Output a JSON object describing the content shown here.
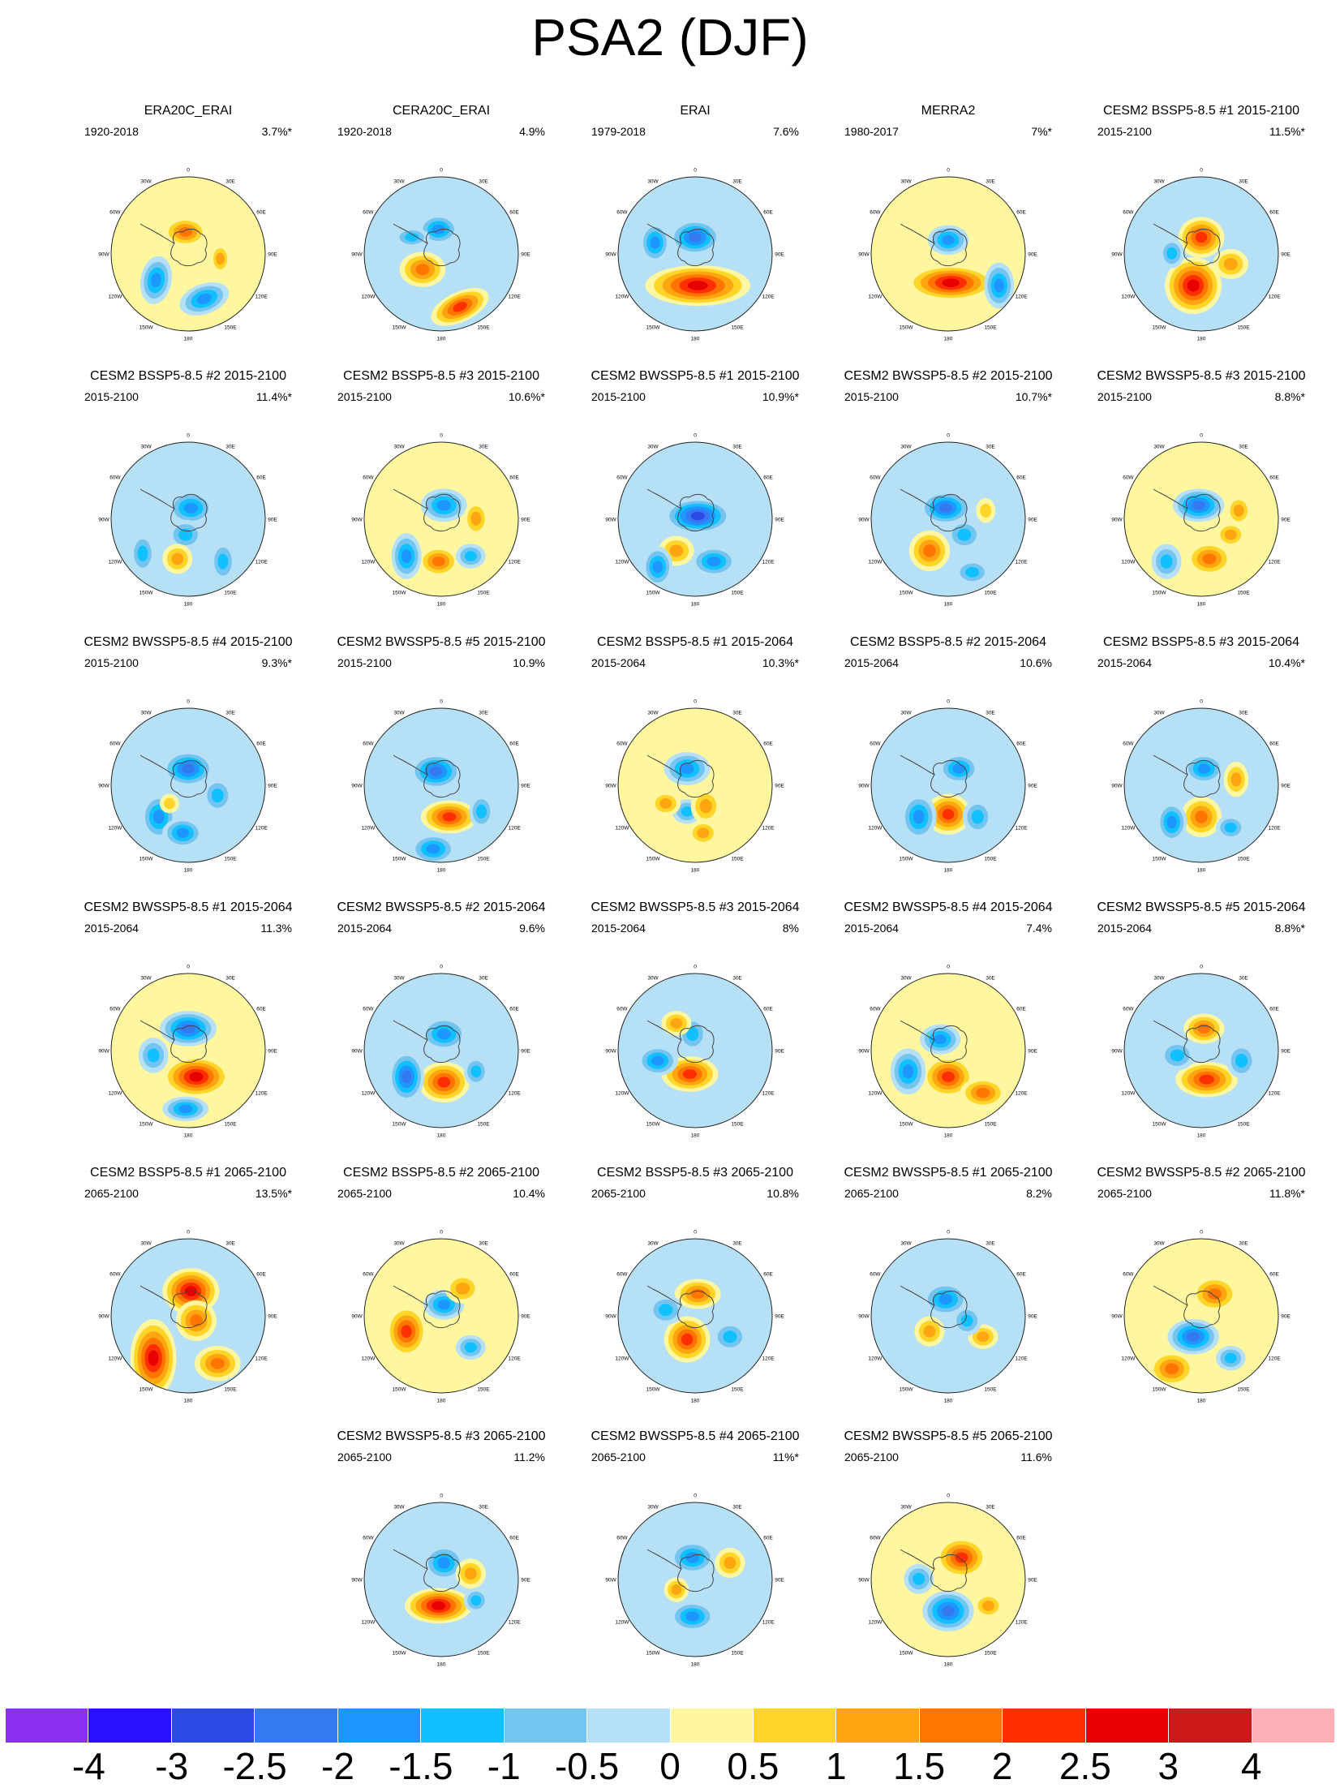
{
  "title": "PSA2 (DJF)",
  "map_labels": {
    "lon_0": "0",
    "lon_30w": "30W",
    "lon_30e": "30E",
    "lon_60w": "60W",
    "lon_60e": "60E",
    "lon_90w": "90W",
    "lon_90e": "90E",
    "lon_120w": "120W",
    "lon_120e": "120E",
    "lon_150w": "150W",
    "lon_150e": "150E",
    "lon_180": "180"
  },
  "panels": [
    {
      "title": "ERA20C_ERAI",
      "period": "1920-2018",
      "percent": "3.7%*"
    },
    {
      "title": "CERA20C_ERAI",
      "period": "1920-2018",
      "percent": "4.9%"
    },
    {
      "title": "ERAI",
      "period": "1979-2018",
      "percent": "7.6%"
    },
    {
      "title": "MERRA2",
      "period": "1980-2017",
      "percent": "7%*"
    },
    {
      "title": "CESM2 BSSP5-8.5 #1 2015-2100",
      "period": "2015-2100",
      "percent": "11.5%*"
    },
    {
      "title": "CESM2 BSSP5-8.5 #2 2015-2100",
      "period": "2015-2100",
      "percent": "11.4%*"
    },
    {
      "title": "CESM2 BSSP5-8.5 #3 2015-2100",
      "period": "2015-2100",
      "percent": "10.6%*"
    },
    {
      "title": "CESM2 BWSSP5-8.5 #1 2015-2100",
      "period": "2015-2100",
      "percent": "10.9%*"
    },
    {
      "title": "CESM2 BWSSP5-8.5 #2 2015-2100",
      "period": "2015-2100",
      "percent": "10.7%*"
    },
    {
      "title": "CESM2 BWSSP5-8.5 #3 2015-2100",
      "period": "2015-2100",
      "percent": "8.8%*"
    },
    {
      "title": "CESM2 BWSSP5-8.5 #4 2015-2100",
      "period": "2015-2100",
      "percent": "9.3%*"
    },
    {
      "title": "CESM2 BWSSP5-8.5 #5 2015-2100",
      "period": "2015-2100",
      "percent": "10.9%"
    },
    {
      "title": "CESM2 BSSP5-8.5 #1 2015-2064",
      "period": "2015-2064",
      "percent": "10.3%*"
    },
    {
      "title": "CESM2 BSSP5-8.5 #2 2015-2064",
      "period": "2015-2064",
      "percent": "10.6%"
    },
    {
      "title": "CESM2 BSSP5-8.5 #3 2015-2064",
      "period": "2015-2064",
      "percent": "10.4%*"
    },
    {
      "title": "CESM2 BWSSP5-8.5 #1 2015-2064",
      "period": "2015-2064",
      "percent": "11.3%"
    },
    {
      "title": "CESM2 BWSSP5-8.5 #2 2015-2064",
      "period": "2015-2064",
      "percent": "9.6%"
    },
    {
      "title": "CESM2 BWSSP5-8.5 #3 2015-2064",
      "period": "2015-2064",
      "percent": "8%"
    },
    {
      "title": "CESM2 BWSSP5-8.5 #4 2015-2064",
      "period": "2015-2064",
      "percent": "7.4%"
    },
    {
      "title": "CESM2 BWSSP5-8.5 #5 2015-2064",
      "period": "2015-2064",
      "percent": "8.8%*"
    },
    {
      "title": "CESM2 BSSP5-8.5 #1 2065-2100",
      "period": "2065-2100",
      "percent": "13.5%*"
    },
    {
      "title": "CESM2 BSSP5-8.5 #2 2065-2100",
      "period": "2065-2100",
      "percent": "10.4%"
    },
    {
      "title": "CESM2 BSSP5-8.5 #3 2065-2100",
      "period": "2065-2100",
      "percent": "10.8%"
    },
    {
      "title": "CESM2 BWSSP5-8.5 #1 2065-2100",
      "period": "2065-2100",
      "percent": "8.2%"
    },
    {
      "title": "CESM2 BWSSP5-8.5 #2 2065-2100",
      "period": "2065-2100",
      "percent": "11.8%*"
    },
    {
      "title": "CESM2 BWSSP5-8.5 #3 2065-2100",
      "period": "2065-2100",
      "percent": "11.2%"
    },
    {
      "title": "CESM2 BWSSP5-8.5 #4 2065-2100",
      "period": "2065-2100",
      "percent": "11%*"
    },
    {
      "title": "CESM2 BWSSP5-8.5 #5 2065-2100",
      "period": "2065-2100",
      "percent": "11.6%"
    }
  ],
  "colorbar": {
    "colors": [
      "#8b2ff0",
      "#2a10ff",
      "#2a4be8",
      "#3579f0",
      "#1e96ff",
      "#10c0ff",
      "#74c4f0",
      "#b6e0f6",
      "#fff7a0",
      "#ffd52a",
      "#ffa510",
      "#ff7500",
      "#ff2f00",
      "#e80000",
      "#cc1a1a",
      "#ffb0b6"
    ],
    "labels": [
      "-4",
      "-3",
      "-2.5",
      "-2",
      "-1.5",
      "-1",
      "-0.5",
      "0",
      "0.5",
      "1",
      "1.5",
      "2",
      "2.5",
      "3",
      "4"
    ]
  }
}
